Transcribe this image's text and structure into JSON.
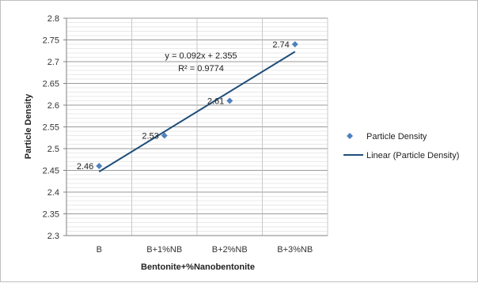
{
  "chart_data": {
    "type": "scatter",
    "categories": [
      "B",
      "B+1%NB",
      "B+2%NB",
      "B+3%NB"
    ],
    "series": [
      {
        "name": "Particle Density",
        "values": [
          2.46,
          2.53,
          2.61,
          2.74
        ],
        "color": "#4f81bd"
      }
    ],
    "trendline": {
      "name": "Linear (Particle Density)",
      "slope": 0.092,
      "intercept": 2.355,
      "equation": "y = 0.092x + 2.355",
      "r_squared": "R² = 0.9774",
      "color": "#1f4e79"
    },
    "data_labels": [
      "2.46",
      "2.53",
      "2.61",
      "2.74"
    ],
    "xlabel": "Bentonite+%Nanobentonite",
    "ylabel": "Particle Density",
    "ylim": [
      2.3,
      2.8
    ],
    "yticks": [
      "2.8",
      "2.75",
      "2.7",
      "2.65",
      "2.6",
      "2.55",
      "2.5",
      "2.45",
      "2.4",
      "2.35",
      "2.3"
    ],
    "grid": true,
    "legend_position": "right"
  }
}
